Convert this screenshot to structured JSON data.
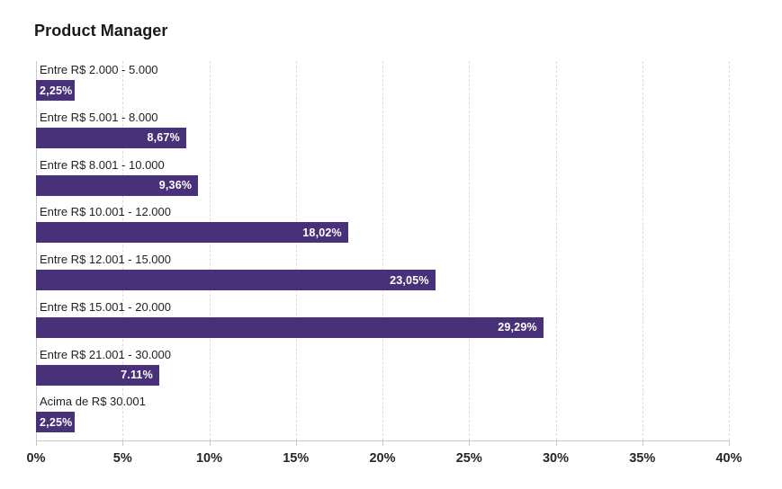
{
  "title": "Product Manager",
  "chart_data": {
    "type": "bar",
    "orientation": "horizontal",
    "title": "Product Manager",
    "categories": [
      "Entre R$ 2.000 - 5.000",
      "Entre R$ 5.001 - 8.000",
      "Entre R$ 8.001 - 10.000",
      "Entre R$ 10.001 - 12.000",
      "Entre R$ 12.001 - 15.000",
      "Entre R$ 15.001 - 20.000",
      "Entre R$ 21.001 - 30.000",
      "Acima de R$ 30.001"
    ],
    "values": [
      2.25,
      8.67,
      9.36,
      18.02,
      23.05,
      29.29,
      7.11,
      2.25
    ],
    "value_labels": [
      "2,25%",
      "8,67%",
      "9,36%",
      "18,02%",
      "23,05%",
      "29,29%",
      "7.11%",
      "2,25%"
    ],
    "xlim": [
      0,
      40
    ],
    "x_tick_labels": [
      "0%",
      "5%",
      "10%",
      "15%",
      "20%",
      "25%",
      "30%",
      "35%",
      "40%"
    ],
    "grid": true,
    "legend": false,
    "bar_color": "#483179",
    "value_label_color": "#ffffff"
  }
}
